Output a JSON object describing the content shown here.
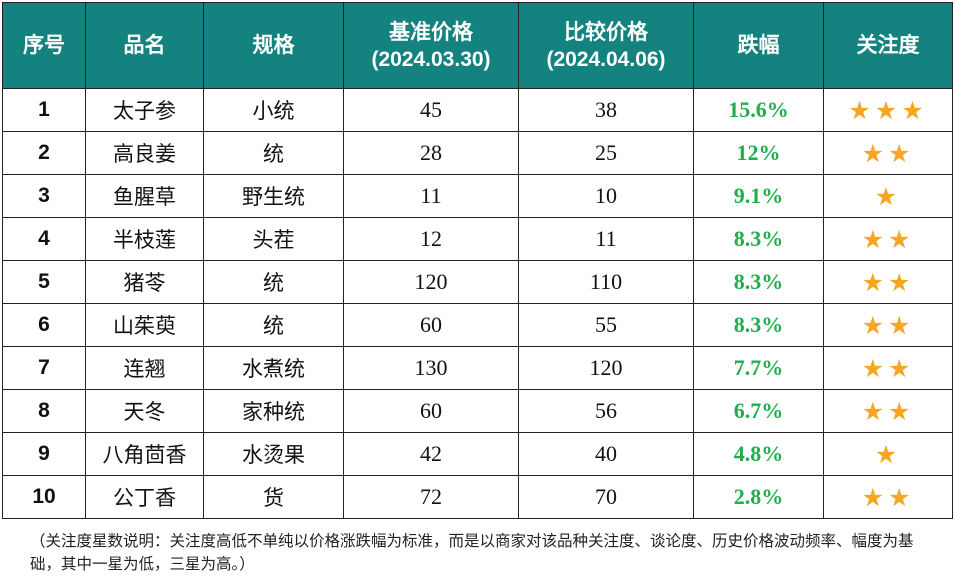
{
  "header": {
    "index": "序号",
    "name": "品名",
    "spec": "规格",
    "base_price": "基准价格",
    "base_date": "(2024.03.30)",
    "compare_price": "比较价格",
    "compare_date": "(2024.04.06)",
    "drop": "跌幅",
    "attention": "关注度"
  },
  "rows": [
    {
      "index": "1",
      "name": "太子参",
      "spec": "小统",
      "base": "45",
      "compare": "38",
      "drop": "15.6%",
      "stars": "★★★"
    },
    {
      "index": "2",
      "name": "高良姜",
      "spec": "统",
      "base": "28",
      "compare": "25",
      "drop": "12%",
      "stars": "★★"
    },
    {
      "index": "3",
      "name": "鱼腥草",
      "spec": "野生统",
      "base": "11",
      "compare": "10",
      "drop": "9.1%",
      "stars": "★"
    },
    {
      "index": "4",
      "name": "半枝莲",
      "spec": "头茬",
      "base": "12",
      "compare": "11",
      "drop": "8.3%",
      "stars": "★★"
    },
    {
      "index": "5",
      "name": "猪苓",
      "spec": "统",
      "base": "120",
      "compare": "110",
      "drop": "8.3%",
      "stars": "★★"
    },
    {
      "index": "6",
      "name": "山茱萸",
      "spec": "统",
      "base": "60",
      "compare": "55",
      "drop": "8.3%",
      "stars": "★★"
    },
    {
      "index": "7",
      "name": "连翘",
      "spec": "水煮统",
      "base": "130",
      "compare": "120",
      "drop": "7.7%",
      "stars": "★★"
    },
    {
      "index": "8",
      "name": "天冬",
      "spec": "家种统",
      "base": "60",
      "compare": "56",
      "drop": "6.7%",
      "stars": "★★"
    },
    {
      "index": "9",
      "name": "八角茴香",
      "spec": "水烫果",
      "base": "42",
      "compare": "40",
      "drop": "4.8%",
      "stars": "★"
    },
    {
      "index": "10",
      "name": "公丁香",
      "spec": "货",
      "base": "72",
      "compare": "70",
      "drop": "2.8%",
      "stars": "★★"
    }
  ],
  "note": "（关注度星数说明：关注度高低不单纯以价格涨跌幅为标准，而是以商家对该品种关注度、谈论度、历史价格波动频率、幅度为基础，其中一星为低，三星为高。）",
  "colors": {
    "header_bg": "#14827e",
    "drop_text": "#1fae4e",
    "star": "#f5a623"
  }
}
